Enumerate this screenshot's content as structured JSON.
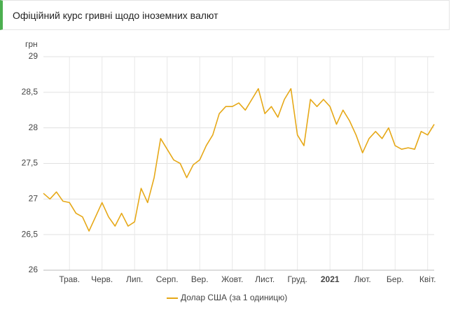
{
  "header": {
    "title": "Офіційний курс гривні щодо іноземних валют"
  },
  "chart_data": {
    "type": "line",
    "y_label": "грн",
    "categories": [
      null,
      null,
      null,
      null,
      "Трав.",
      null,
      null,
      null,
      null,
      "Черв.",
      null,
      null,
      null,
      null,
      "Лип.",
      null,
      null,
      null,
      null,
      "Серп.",
      null,
      null,
      null,
      null,
      "Вер.",
      null,
      null,
      null,
      null,
      "Жовт.",
      null,
      null,
      null,
      null,
      "Лист.",
      null,
      null,
      null,
      null,
      "Груд.",
      null,
      null,
      null,
      null,
      "2021",
      null,
      null,
      null,
      null,
      "Лют.",
      null,
      null,
      null,
      null,
      "Бер.",
      null,
      null,
      null,
      null,
      "Квіт.",
      null
    ],
    "series": [
      {
        "name": "Долар США (за 1 одиницю)",
        "color": "#e6a817",
        "values": [
          27.08,
          27.0,
          27.1,
          26.97,
          26.95,
          26.8,
          26.75,
          26.55,
          26.75,
          26.95,
          26.75,
          26.62,
          26.8,
          26.62,
          26.68,
          27.15,
          26.95,
          27.3,
          27.85,
          27.7,
          27.55,
          27.5,
          27.3,
          27.48,
          27.55,
          27.75,
          27.9,
          28.2,
          28.3,
          28.3,
          28.35,
          28.25,
          28.4,
          28.55,
          28.2,
          28.3,
          28.15,
          28.4,
          28.55,
          27.9,
          27.75,
          28.4,
          28.3,
          28.4,
          28.3,
          28.05,
          28.25,
          28.1,
          27.9,
          27.65,
          27.85,
          27.95,
          27.85,
          28.0,
          27.75,
          27.7,
          27.72,
          27.7,
          27.95,
          27.9,
          28.05
        ]
      }
    ],
    "ylim": [
      26,
      29
    ],
    "yticks": [
      26,
      {
        "value": 26.5,
        "label": "26,5"
      },
      27,
      {
        "value": 27.5,
        "label": "27,5"
      },
      28,
      {
        "value": 28.5,
        "label": "28,5"
      },
      29
    ],
    "grid": true
  }
}
